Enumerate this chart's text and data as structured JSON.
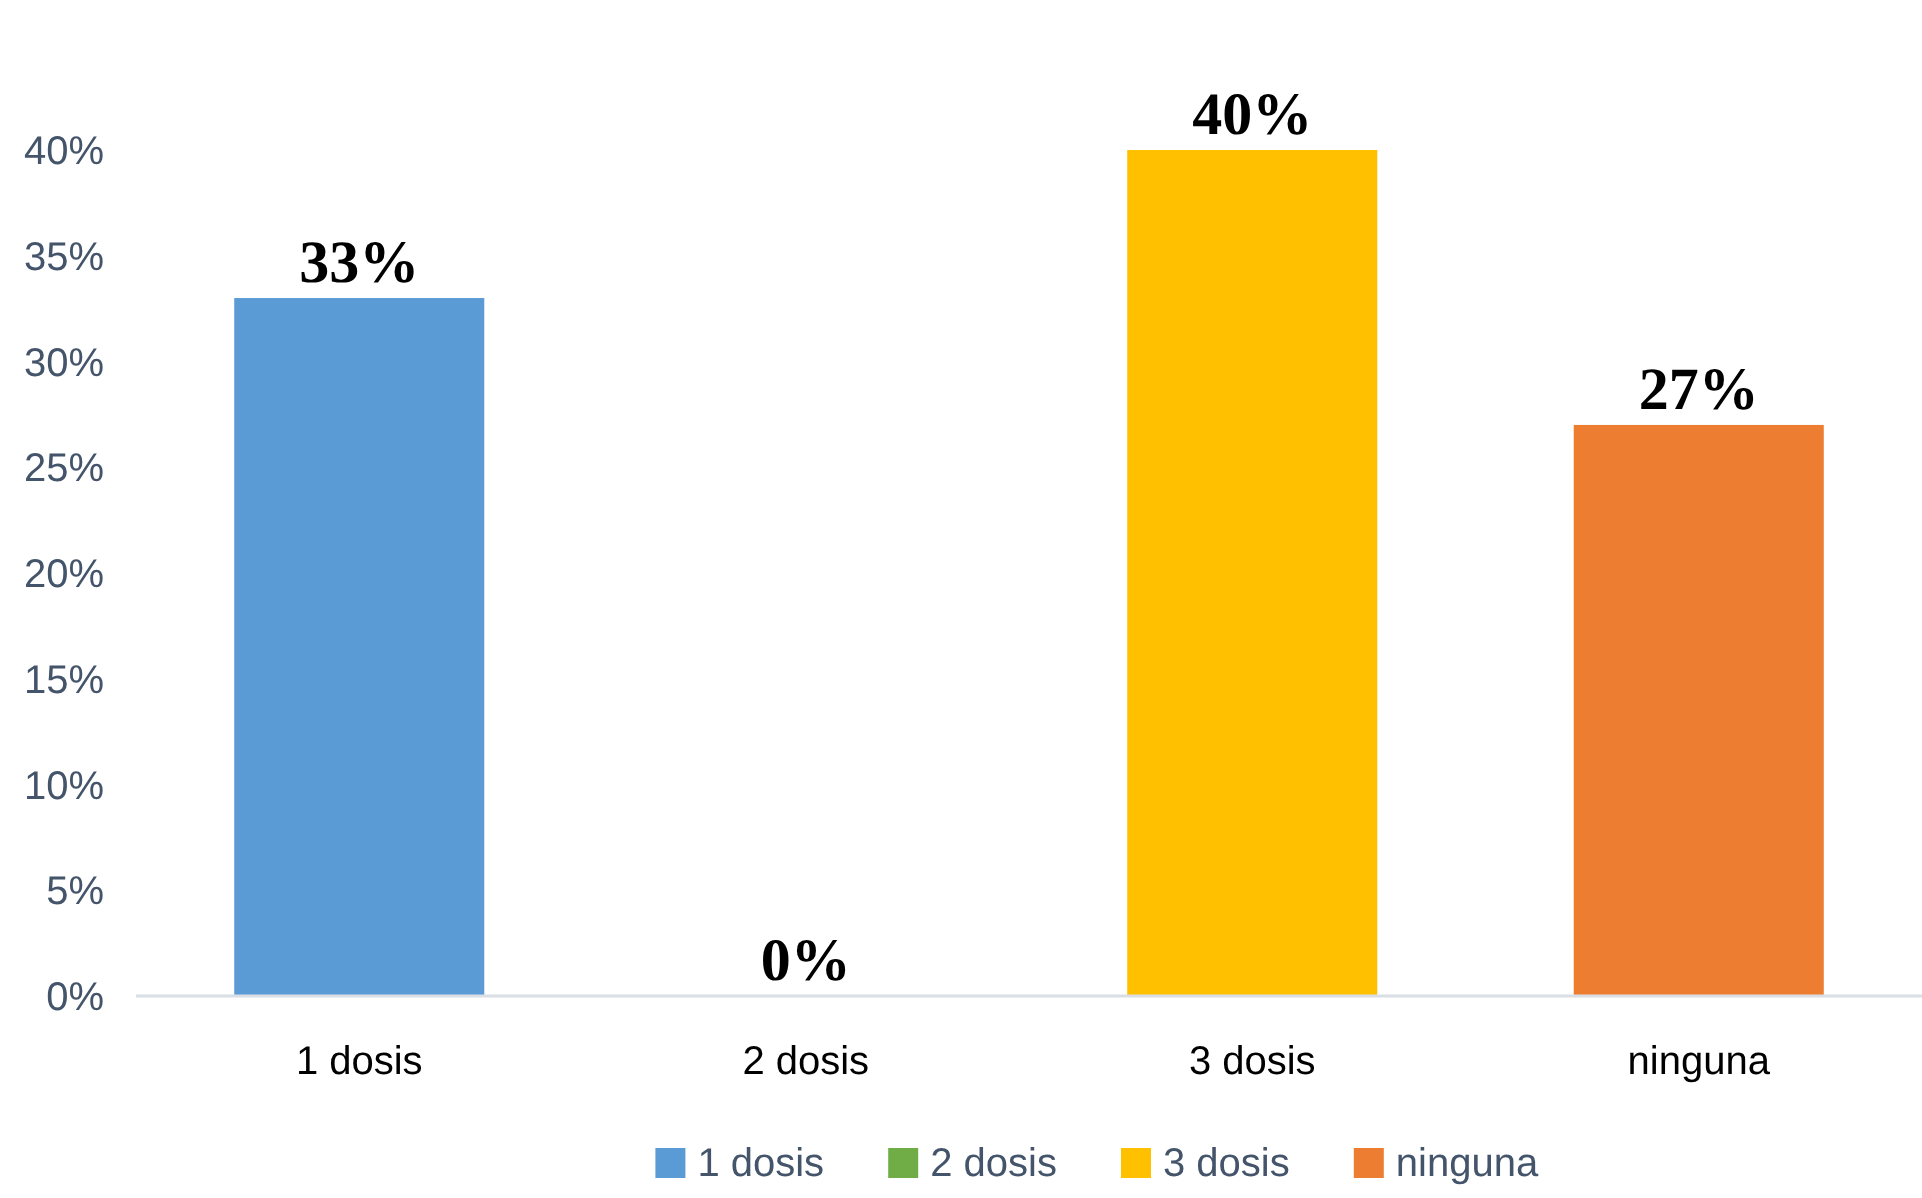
{
  "chart_data": {
    "type": "bar",
    "categories": [
      "1 dosis",
      "2 dosis",
      "3 dosis",
      "ninguna"
    ],
    "series": [
      {
        "name": "1 dosis",
        "color": "#5b9bd5",
        "values": [
          33,
          null,
          null,
          null
        ],
        "value_labels": [
          "33%",
          null,
          null,
          null
        ]
      },
      {
        "name": "2 dosis",
        "color": "#70ad47",
        "values": [
          null,
          0,
          null,
          null
        ],
        "value_labels": [
          null,
          "0%",
          null,
          null
        ]
      },
      {
        "name": "3 dosis",
        "color": "#ffc000",
        "values": [
          null,
          null,
          40,
          null
        ],
        "value_labels": [
          null,
          null,
          "40%",
          null
        ]
      },
      {
        "name": "ninguna",
        "color": "#ed7d31",
        "values": [
          null,
          null,
          null,
          27
        ],
        "value_labels": [
          null,
          null,
          null,
          "27%"
        ]
      }
    ],
    "ylim": [
      0,
      40
    ],
    "yticks": [
      {
        "value": 0,
        "label": "0%"
      },
      {
        "value": 5,
        "label": "5%"
      },
      {
        "value": 10,
        "label": "10%"
      },
      {
        "value": 15,
        "label": "15%"
      },
      {
        "value": 20,
        "label": "20%"
      },
      {
        "value": 25,
        "label": "25%"
      },
      {
        "value": 30,
        "label": "30%"
      },
      {
        "value": 35,
        "label": "35%"
      },
      {
        "value": 40,
        "label": "40%"
      }
    ],
    "legend": "bottom"
  }
}
